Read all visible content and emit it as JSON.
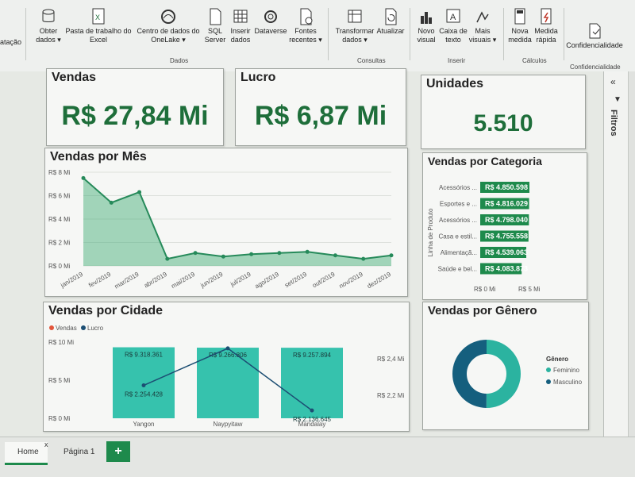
{
  "ribbon": {
    "cut_label": "atação",
    "buttons": [
      {
        "id": "obter",
        "label1": "Obter",
        "label2": "dados ▾"
      },
      {
        "id": "excel",
        "label1": "Pasta de trabalho do",
        "label2": "Excel"
      },
      {
        "id": "onelake",
        "label1": "Centro de dados do",
        "label2": "OneLake ▾"
      },
      {
        "id": "sql",
        "label1": "SQL",
        "label2": "Server"
      },
      {
        "id": "inserir",
        "label1": "Inserir",
        "label2": "dados"
      },
      {
        "id": "dataverse",
        "label1": "Dataverse",
        "label2": ""
      },
      {
        "id": "fontes",
        "label1": "Fontes",
        "label2": "recentes ▾"
      },
      {
        "id": "transformar",
        "label1": "Transformar",
        "label2": "dados ▾"
      },
      {
        "id": "atualizar",
        "label1": "Atualizar",
        "label2": ""
      },
      {
        "id": "novovisual",
        "label1": "Novo",
        "label2": "visual"
      },
      {
        "id": "caixatexto",
        "label1": "Caixa de",
        "label2": "texto"
      },
      {
        "id": "maisvisuais",
        "label1": "Mais",
        "label2": "visuais ▾"
      },
      {
        "id": "novamedida",
        "label1": "Nova",
        "label2": "medida"
      },
      {
        "id": "medidarapida",
        "label1": "Medida",
        "label2": "rápida"
      },
      {
        "id": "confidencialidade",
        "label1": "Confidencialidade",
        "label2": ""
      }
    ],
    "groups": {
      "dados": "Dados",
      "consultas": "Consultas",
      "inserir": "Inserir",
      "calculos": "Cálculos",
      "confidencialidade": "Confidencialidade"
    }
  },
  "kpis": {
    "vendas": {
      "title": "Vendas",
      "value": "R$ 27,84 Mi"
    },
    "lucro": {
      "title": "Lucro",
      "value": "R$ 6,87 Mi"
    },
    "unidades": {
      "title": "Unidades",
      "value": "5.510"
    }
  },
  "cards": {
    "mes_title": "Vendas por Mês",
    "categoria_title": "Vendas por Categoria",
    "cidade_title": "Vendas por Cidade",
    "genero_title": "Vendas por Gênero"
  },
  "chart_data": [
    {
      "type": "area",
      "title": "Vendas por Mês",
      "x": [
        "jan/2019",
        "fev/2019",
        "mar/2019",
        "abr/2019",
        "mai/2019",
        "jun/2019",
        "jul/2019",
        "ago/2019",
        "set/2019",
        "out/2019",
        "nov/2019",
        "dez/2019"
      ],
      "values": [
        7.5,
        5.4,
        6.3,
        0.6,
        1.1,
        0.8,
        1.0,
        1.1,
        1.2,
        0.9,
        0.6,
        0.9
      ],
      "ylim": [
        0,
        8
      ],
      "yticks": [
        "R$ 0 Mi",
        "R$ 2 Mi",
        "R$ 4 Mi",
        "R$ 6 Mi",
        "R$ 8 Mi"
      ],
      "color": "#3aa872"
    },
    {
      "type": "bar",
      "title": "Vendas por Categoria",
      "ylabel": "Linha de Produto",
      "categories": [
        "Acessórios ...",
        "Esportes e ...",
        "Acessórios ...",
        "Casa e estil...",
        "Alimentaçã...",
        "Saúde e bel..."
      ],
      "values": [
        4850598,
        4816029,
        4798040,
        4755558,
        4539063,
        4083873
      ],
      "data_labels": [
        "R$ 4.850.598",
        "R$ 4.816.029",
        "R$ 4.798.040",
        "R$ 4.755.558",
        "R$ 4.539.063",
        "R$ 4.083.873"
      ],
      "xticks": [
        "R$ 0 Mi",
        "R$ 5 Mi"
      ],
      "color": "#1e8a4c"
    },
    {
      "type": "bar",
      "title": "Vendas por Cidade",
      "legend": [
        "Vendas",
        "Lucro"
      ],
      "legend_colors": [
        "#e2553b",
        "#1c4e73"
      ],
      "categories": [
        "Yangon",
        "Naypyitaw",
        "Mandalay"
      ],
      "series": [
        {
          "name": "Vendas",
          "values": [
            9318361,
            9266806,
            9257894
          ],
          "labels": [
            "R$ 9.318.361",
            "R$ 9.266.806",
            "R$ 9.257.894"
          ]
        },
        {
          "name": "Lucro",
          "values": [
            2254428,
            2428000,
            2136645
          ],
          "labels": [
            "R$ 2.254.428",
            "",
            "R$ 2.136.645"
          ]
        }
      ],
      "ylim": [
        0,
        10
      ],
      "yticks_left": [
        "R$ 0 Mi",
        "R$ 5 Mi",
        "R$ 10 Mi"
      ],
      "yticks_right": [
        "R$ 2,2 Mi",
        "R$ 2,4 Mi"
      ],
      "bar_color": "#36c2ad",
      "line_color": "#1c4e73"
    },
    {
      "type": "pie",
      "title": "Vendas por Gênero",
      "legend_title": "Gênero",
      "categories": [
        "Feminino",
        "Masculino"
      ],
      "values": [
        50,
        50
      ],
      "colors": [
        "#2bb3a0",
        "#155f7e"
      ]
    }
  ],
  "filters_label": "Filtros",
  "tabs": {
    "home": "Home",
    "pagina1": "Página 1",
    "add": "+",
    "close": "x"
  }
}
